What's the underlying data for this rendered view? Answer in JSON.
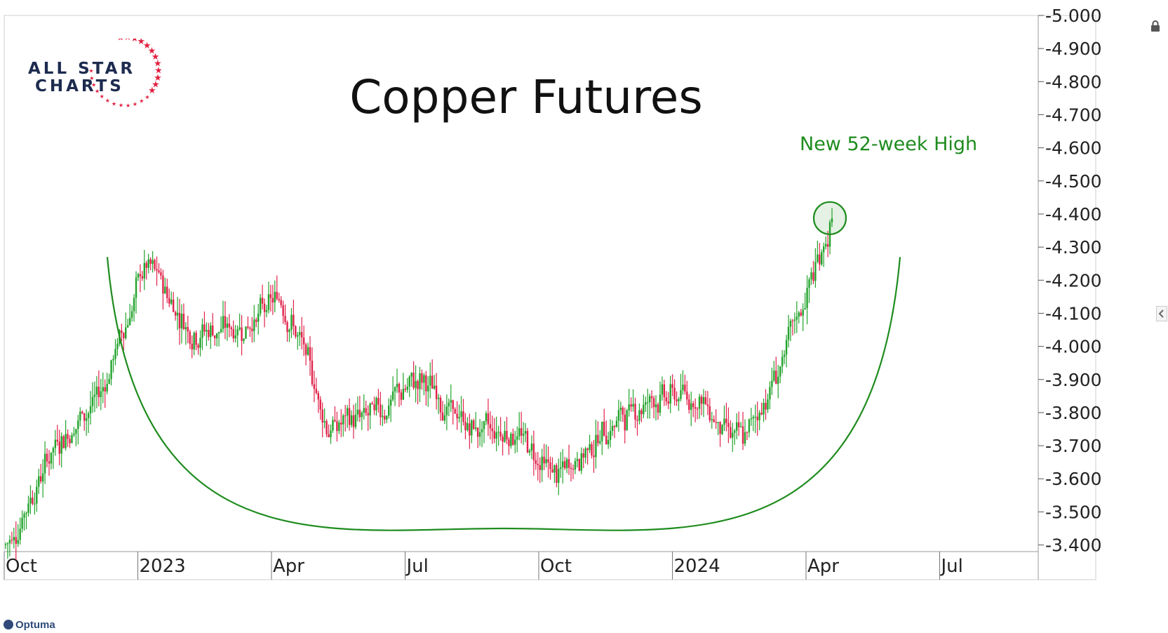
{
  "title": "Copper Futures",
  "annotation": "New 52-week High",
  "logo": {
    "line1": "ALL STAR",
    "line2": "CHARTS"
  },
  "brand": "Optuma",
  "icons": [
    "lock-icon",
    "chevron-left-icon",
    "star-icon"
  ],
  "colors": {
    "up": "#22a32b",
    "down": "#e0224a",
    "arc": "#1e8c1e",
    "logo_star": "#e02040",
    "logo_text": "#1d2b4f",
    "grid": "#dddddd"
  },
  "chart_data": {
    "type": "candlestick",
    "title": "Copper Futures",
    "y_axis": {
      "position": "right",
      "ylim": [
        3.38,
        5.0
      ],
      "ticks": [
        "3.400",
        "3.500",
        "3.600",
        "3.700",
        "3.800",
        "3.900",
        "4.000",
        "4.100",
        "4.200",
        "4.300",
        "4.400",
        "4.500",
        "4.600",
        "4.700",
        "4.800",
        "4.900",
        "5.000"
      ]
    },
    "x_axis": {
      "labels": [
        "Oct",
        "2023",
        "Apr",
        "Jul",
        "Oct",
        "2024",
        "Apr",
        "Jul"
      ]
    },
    "x": [
      "2022-10",
      "2022-11",
      "2022-12",
      "2023-01",
      "2023-02",
      "2023-03",
      "2023-04",
      "2023-05",
      "2023-06",
      "2023-07",
      "2023-08",
      "2023-09",
      "2023-10",
      "2023-11",
      "2023-12",
      "2024-01",
      "2024-02",
      "2024-03",
      "2024-04"
    ],
    "series": [
      {
        "values": [
          3.4,
          3.7,
          3.85,
          4.25,
          4.05,
          4.05,
          4.15,
          3.75,
          3.8,
          3.9,
          3.75,
          3.75,
          3.6,
          3.75,
          3.85,
          3.85,
          3.7,
          4.0,
          4.4
        ]
      }
    ],
    "annotations": [
      {
        "text": "New 52-week High",
        "value": 4.43
      }
    ],
    "arc": {
      "left_top": 4.27,
      "bottom": 3.45,
      "right_top": 4.27
    },
    "grid": false
  }
}
